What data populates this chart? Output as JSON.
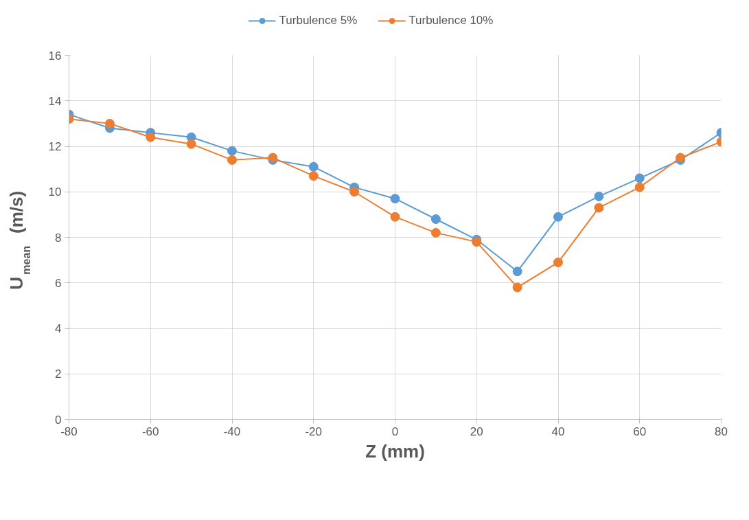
{
  "chart_data": {
    "type": "line",
    "xlabel": "Z (mm)",
    "ylabel": "U$_{mean}$ (m/s)",
    "x": [
      -80,
      -70,
      -60,
      -50,
      -40,
      -30,
      -20,
      -10,
      0,
      10,
      20,
      30,
      40,
      50,
      60,
      70,
      80
    ],
    "series": [
      {
        "name": "Turbulence 5%",
        "color": "#5b9bd5",
        "values": [
          13.4,
          12.8,
          12.6,
          12.4,
          11.8,
          11.4,
          11.1,
          10.2,
          9.7,
          8.8,
          7.9,
          6.5,
          8.9,
          9.8,
          10.6,
          11.4,
          12.6
        ]
      },
      {
        "name": "Turbulence 10%",
        "color": "#ed7d31",
        "values": [
          13.2,
          13.0,
          12.4,
          12.1,
          11.4,
          11.5,
          10.7,
          10.0,
          8.9,
          8.2,
          7.8,
          5.8,
          6.9,
          9.3,
          10.2,
          11.5,
          12.2
        ]
      }
    ],
    "xlim": [
      -80,
      80
    ],
    "xticks": [
      -80,
      -60,
      -40,
      -20,
      0,
      20,
      40,
      60,
      80
    ],
    "ylim": [
      0,
      16
    ],
    "yticks": [
      0,
      2,
      4,
      6,
      8,
      10,
      12,
      14,
      16
    ],
    "grid": true,
    "legend": "top",
    "marker": "circle",
    "line_style": "solid"
  }
}
